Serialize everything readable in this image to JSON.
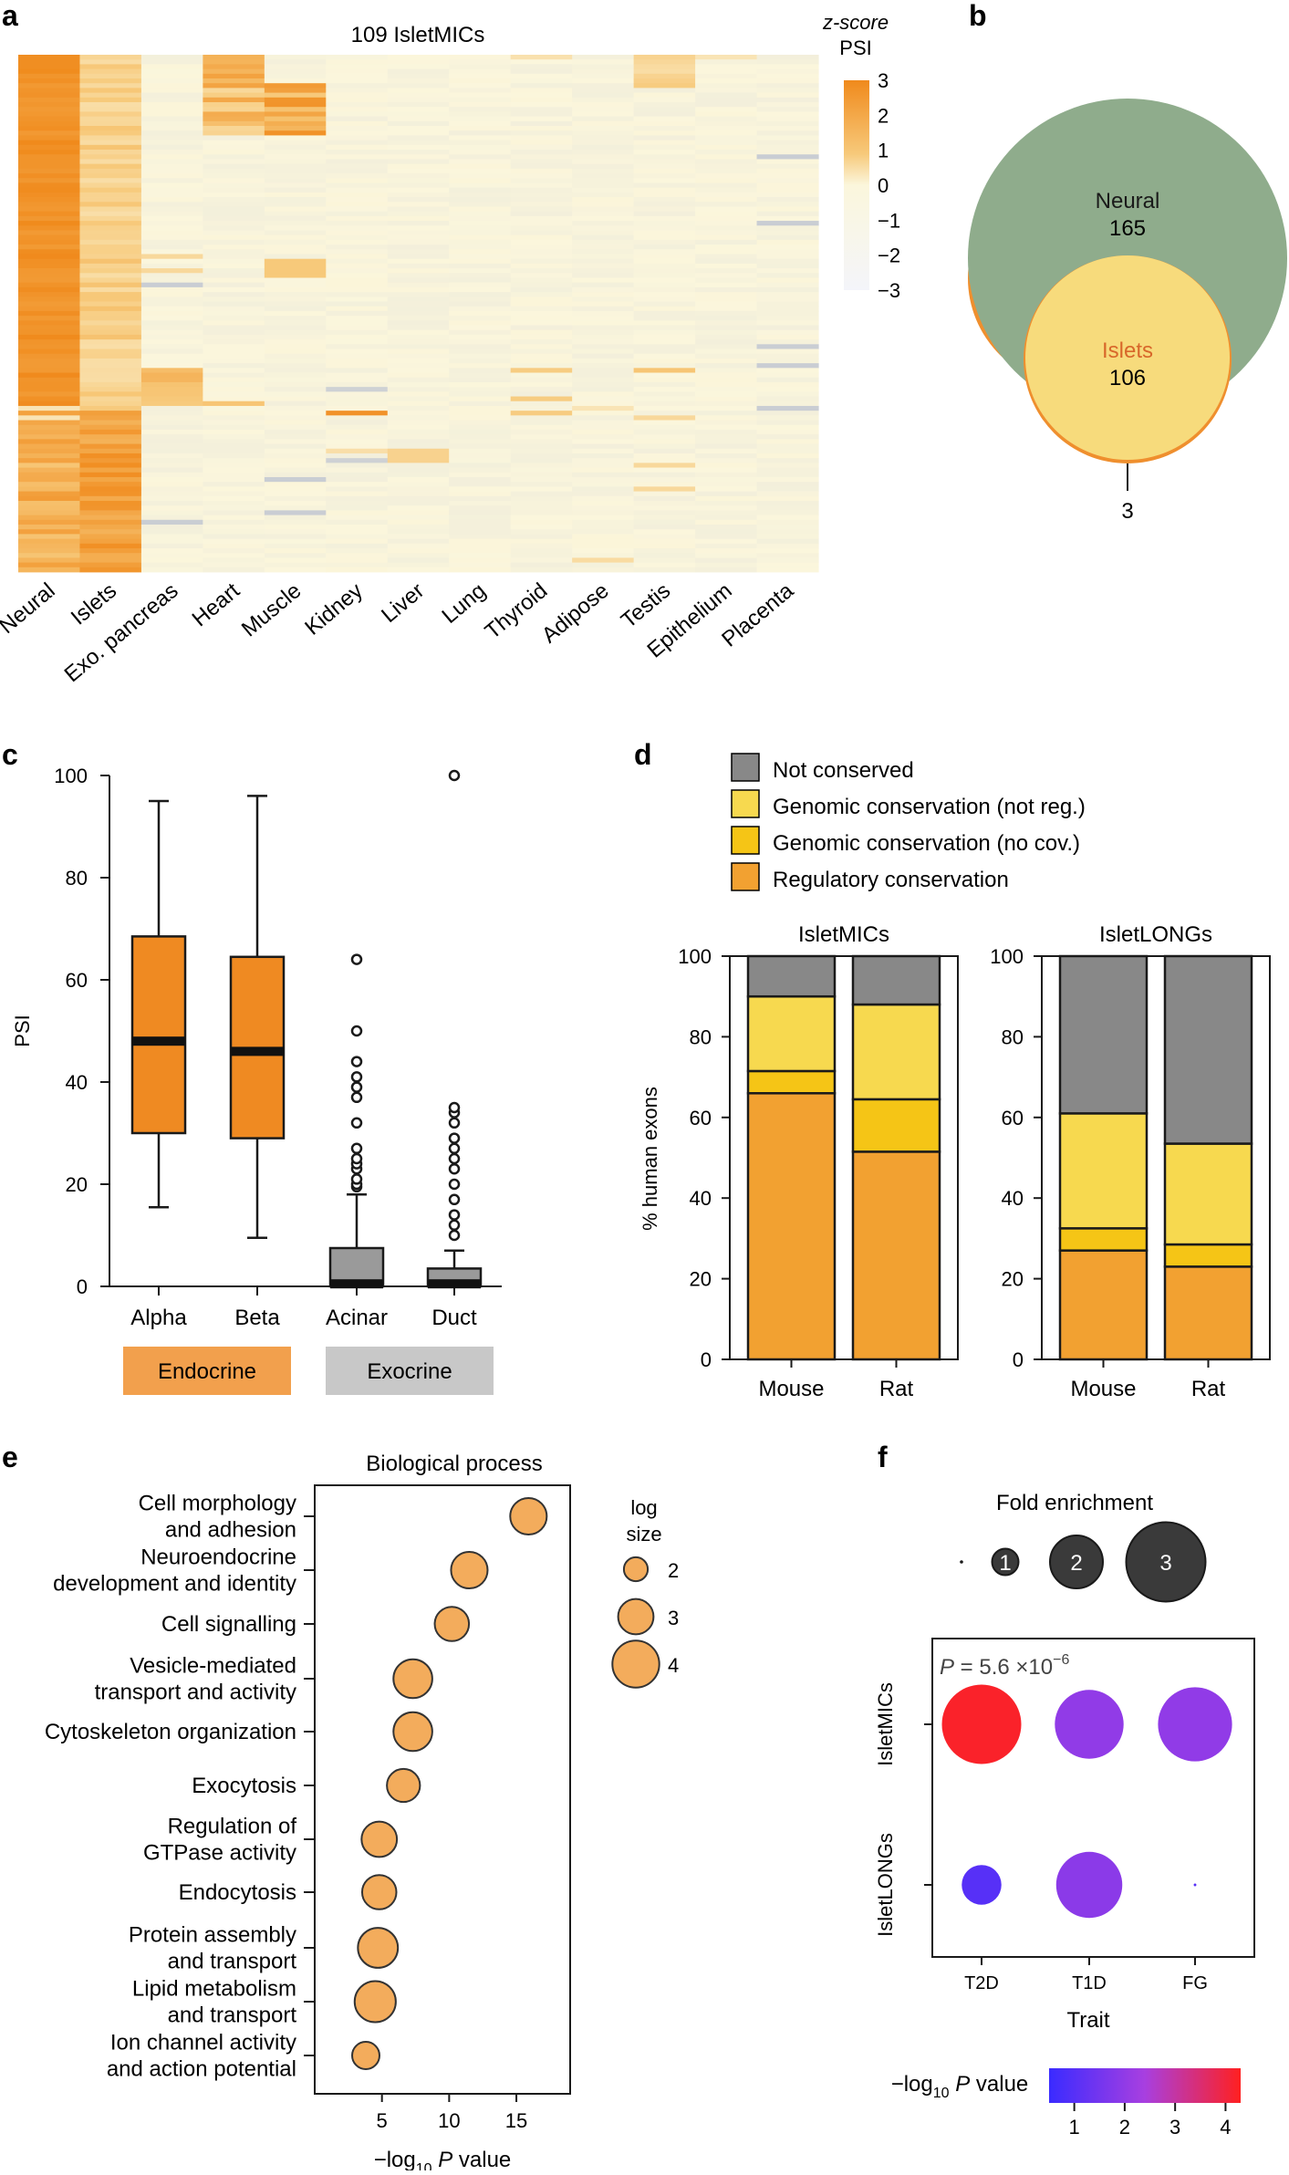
{
  "panels": {
    "a": "a",
    "b": "b",
    "c": "c",
    "d": "d",
    "e": "e",
    "f": "f"
  },
  "colors": {
    "heat_max": "#f08a1c",
    "heat_mid": "#f7c97a",
    "heat_zero": "#fbf6dc",
    "heat_neg": "#b8bfd0",
    "venn_outer": "#8fac8c",
    "venn_inner": "#f7db7c",
    "venn_extra": "#ef8f2e",
    "islet_label": "#d8672a",
    "box_endocrine": "#ef8a22",
    "box_exocrine": "#9a9a9a",
    "endocrine_bar": "#f2a04d",
    "exocrine_bar": "#c8c8c8",
    "not_conserved": "#888888",
    "genomic_not_reg": "#f7d94f",
    "genomic_no_cov": "#f5c516",
    "regulatory": "#f2a131",
    "go_dot": "#f3ac5c",
    "fold_dot": "#3a3a3a"
  },
  "chart_data": [
    {
      "panel": "a",
      "type": "heatmap",
      "title": "109 IsletMICs",
      "categories": [
        "Neural",
        "Islets",
        "Exo. pancreas",
        "Heart",
        "Muscle",
        "Kidney",
        "Liver",
        "Lung",
        "Thyroid",
        "Adipose",
        "Testis",
        "Epithelium",
        "Placenta"
      ],
      "legend": {
        "title": [
          "z-score",
          "PSI"
        ],
        "ticks": [
          "3",
          "2",
          "1",
          "0",
          "−1",
          "−2",
          "−3"
        ],
        "range": [
          -3,
          3
        ]
      },
      "rows": 109
    },
    {
      "panel": "b",
      "type": "venn",
      "sets": [
        {
          "label": "Neural",
          "value": "165"
        },
        {
          "label": "Islets",
          "value": "106"
        },
        {
          "label": "",
          "value": "3"
        }
      ]
    },
    {
      "panel": "c",
      "type": "box",
      "ylabel": "PSI",
      "ylim": [
        0,
        100
      ],
      "yticks": [
        "0",
        "20",
        "40",
        "60",
        "80",
        "100"
      ],
      "categories": [
        "Alpha",
        "Beta",
        "Acinar",
        "Duct"
      ],
      "boxes": [
        {
          "name": "Alpha",
          "group": "endocrine",
          "min": 15.5,
          "q1": 30,
          "median": 48,
          "q3": 68.5,
          "max": 95,
          "outliers": []
        },
        {
          "name": "Beta",
          "group": "endocrine",
          "min": 9.5,
          "q1": 29,
          "median": 46,
          "q3": 64.5,
          "max": 96,
          "outliers": []
        },
        {
          "name": "Acinar",
          "group": "exocrine",
          "min": 0,
          "q1": 0,
          "median": 0.5,
          "q3": 7.5,
          "max": 18,
          "outliers": [
            19.5,
            20,
            21,
            23,
            24,
            25,
            27,
            32,
            37,
            39,
            41,
            44,
            50,
            64
          ]
        },
        {
          "name": "Duct",
          "group": "exocrine",
          "min": 0,
          "q1": 0,
          "median": 0.5,
          "q3": 3.5,
          "max": 7,
          "outliers": [
            10,
            12,
            14,
            17,
            20,
            23,
            25,
            27,
            29,
            32,
            34,
            35,
            100
          ]
        }
      ],
      "groups": [
        {
          "label": "Endocrine",
          "members": [
            "Alpha",
            "Beta"
          ]
        },
        {
          "label": "Exocrine",
          "members": [
            "Acinar",
            "Duct"
          ]
        }
      ]
    },
    {
      "panel": "d",
      "type": "bar",
      "ylabel": "% human exons",
      "ylim": [
        0,
        100
      ],
      "yticks": [
        "0",
        "20",
        "40",
        "60",
        "80",
        "100"
      ],
      "legend": [
        "Not conserved",
        "Genomic conservation (not reg.)",
        "Genomic conservation (no cov.)",
        "Regulatory conservation"
      ],
      "subplots": [
        {
          "title": "IsletMICs",
          "categories": [
            "Mouse",
            "Rat"
          ],
          "series": [
            {
              "name": "Regulatory conservation",
              "values": [
                66,
                51.5
              ]
            },
            {
              "name": "Genomic conservation (no cov.)",
              "values": [
                5.5,
                13
              ]
            },
            {
              "name": "Genomic conservation (not reg.)",
              "values": [
                18.5,
                23.5
              ]
            },
            {
              "name": "Not conserved",
              "values": [
                10,
                12
              ]
            }
          ]
        },
        {
          "title": "IsletLONGs",
          "categories": [
            "Mouse",
            "Rat"
          ],
          "series": [
            {
              "name": "Regulatory conservation",
              "values": [
                27,
                23
              ]
            },
            {
              "name": "Genomic conservation (no cov.)",
              "values": [
                5.5,
                5.5
              ]
            },
            {
              "name": "Genomic conservation (not reg.)",
              "values": [
                28.5,
                25
              ]
            },
            {
              "name": "Not conserved",
              "values": [
                39,
                46.5
              ]
            }
          ]
        }
      ]
    },
    {
      "panel": "e",
      "type": "scatter",
      "title": "Biological process",
      "xlabel": "−log10 P value",
      "xlim": [
        0,
        19
      ],
      "xticks": [
        "5",
        "10",
        "15"
      ],
      "size_legend": {
        "title": [
          "log",
          "size"
        ],
        "values": [
          "2",
          "3",
          "4"
        ]
      },
      "points": [
        {
          "label": [
            "Cell morphology",
            "and adhesion"
          ],
          "x": 15.9,
          "size": 3.1
        },
        {
          "label": [
            "Neuroendocrine",
            "development and identity"
          ],
          "x": 11.5,
          "size": 3.1
        },
        {
          "label": [
            "Cell signalling"
          ],
          "x": 10.2,
          "size": 2.9
        },
        {
          "label": [
            "Vesicle-mediated",
            "transport and activity"
          ],
          "x": 7.3,
          "size": 3.3
        },
        {
          "label": [
            "Cytoskeleton organization"
          ],
          "x": 7.3,
          "size": 3.3
        },
        {
          "label": [
            "Exocytosis"
          ],
          "x": 6.6,
          "size": 2.8
        },
        {
          "label": [
            "Regulation of",
            "GTPase activity"
          ],
          "x": 4.8,
          "size": 3.0
        },
        {
          "label": [
            "Endocytosis"
          ],
          "x": 4.8,
          "size": 2.9
        },
        {
          "label": [
            "Protein assembly",
            "and transport"
          ],
          "x": 4.7,
          "size": 3.4
        },
        {
          "label": [
            "Lipid metabolism",
            "and transport"
          ],
          "x": 4.5,
          "size": 3.5
        },
        {
          "label": [
            "Ion channel activity",
            "and action potential"
          ],
          "x": 3.8,
          "size": 2.3
        }
      ]
    },
    {
      "panel": "f",
      "type": "scatter",
      "xlabel": "Trait",
      "xcategories": [
        "T2D",
        "T1D",
        "FG"
      ],
      "ycategories": [
        "IsletMICs",
        "IsletLONGs"
      ],
      "size_legend": {
        "title": "Fold enrichment",
        "values": [
          "1",
          "2",
          "3"
        ]
      },
      "annotation": {
        "prefix": "P",
        "text": " =  5.6 ×10",
        "exp": "−6"
      },
      "color_legend": {
        "label": "−log10 P value",
        "ticks": [
          "1",
          "2",
          "3",
          "4"
        ],
        "range": [
          0.5,
          4.3
        ]
      },
      "points": [
        {
          "x": "T2D",
          "y": "IsletMICs",
          "fold": 3.0,
          "p": 4.2
        },
        {
          "x": "T1D",
          "y": "IsletMICs",
          "fold": 2.6,
          "p": 2.0
        },
        {
          "x": "FG",
          "y": "IsletMICs",
          "fold": 2.8,
          "p": 2.0
        },
        {
          "x": "T2D",
          "y": "IsletLONGs",
          "fold": 1.5,
          "p": 1.0
        },
        {
          "x": "T1D",
          "y": "IsletLONGs",
          "fold": 2.5,
          "p": 1.9
        },
        {
          "x": "FG",
          "y": "IsletLONGs",
          "fold": 0.1,
          "p": 1.0
        }
      ]
    }
  ]
}
